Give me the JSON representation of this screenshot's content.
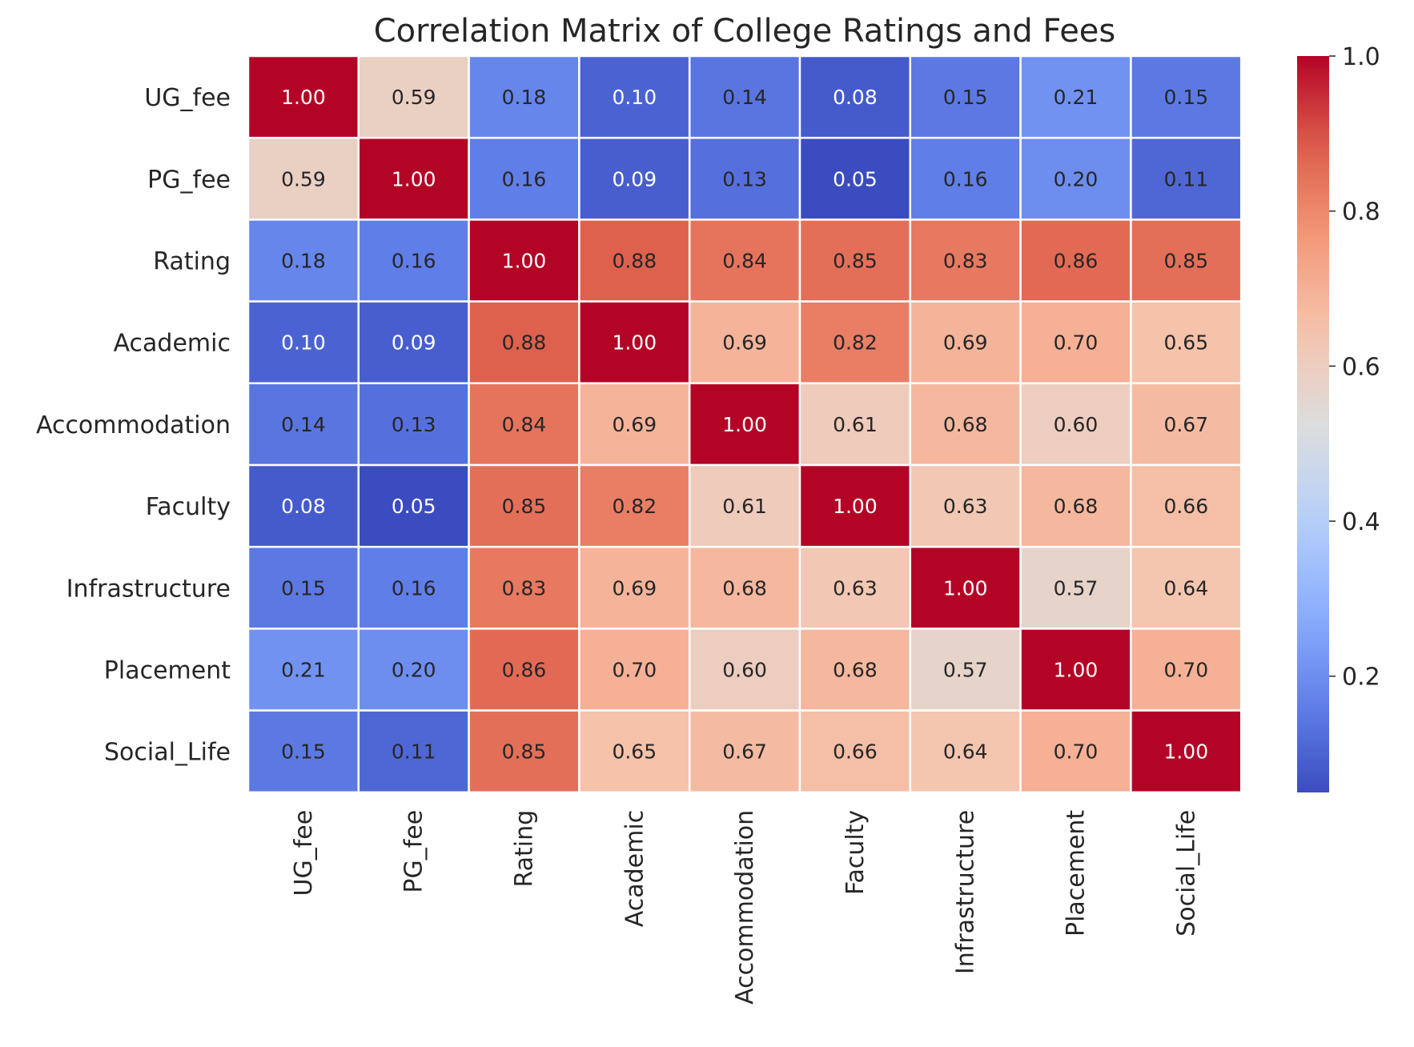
{
  "chart_data": {
    "type": "heatmap",
    "title": "Correlation Matrix of College Ratings and Fees",
    "row_labels": [
      "UG_fee",
      "PG_fee",
      "Rating",
      "Academic",
      "Accommodation",
      "Faculty",
      "Infrastructure",
      "Placement",
      "Social_Life"
    ],
    "col_labels": [
      "UG_fee",
      "PG_fee",
      "Rating",
      "Academic",
      "Accommodation",
      "Faculty",
      "Infrastructure",
      "Placement",
      "Social_Life"
    ],
    "values": [
      [
        1.0,
        0.59,
        0.18,
        0.1,
        0.14,
        0.08,
        0.15,
        0.21,
        0.15
      ],
      [
        0.59,
        1.0,
        0.16,
        0.09,
        0.13,
        0.05,
        0.16,
        0.2,
        0.11
      ],
      [
        0.18,
        0.16,
        1.0,
        0.88,
        0.84,
        0.85,
        0.83,
        0.86,
        0.85
      ],
      [
        0.1,
        0.09,
        0.88,
        1.0,
        0.69,
        0.82,
        0.69,
        0.7,
        0.65
      ],
      [
        0.14,
        0.13,
        0.84,
        0.69,
        1.0,
        0.61,
        0.68,
        0.6,
        0.67
      ],
      [
        0.08,
        0.05,
        0.85,
        0.82,
        0.61,
        1.0,
        0.63,
        0.68,
        0.66
      ],
      [
        0.15,
        0.16,
        0.83,
        0.69,
        0.68,
        0.63,
        1.0,
        0.57,
        0.64
      ],
      [
        0.21,
        0.2,
        0.86,
        0.7,
        0.6,
        0.68,
        0.57,
        1.0,
        0.7
      ],
      [
        0.15,
        0.11,
        0.85,
        0.65,
        0.67,
        0.66,
        0.64,
        0.7,
        1.0
      ]
    ],
    "value_format": "0.00",
    "colormap": "coolwarm",
    "colorbar": {
      "vmin": 0.05,
      "vmax": 1.0,
      "ticks": [
        0.2,
        0.4,
        0.6,
        0.8,
        1.0
      ],
      "tick_labels": [
        "0.2",
        "0.4",
        "0.6",
        "0.8",
        "1.0"
      ]
    },
    "grid_color": "#ffffff",
    "text_color_light": "#ffffff",
    "text_color_dark": "#262626"
  }
}
